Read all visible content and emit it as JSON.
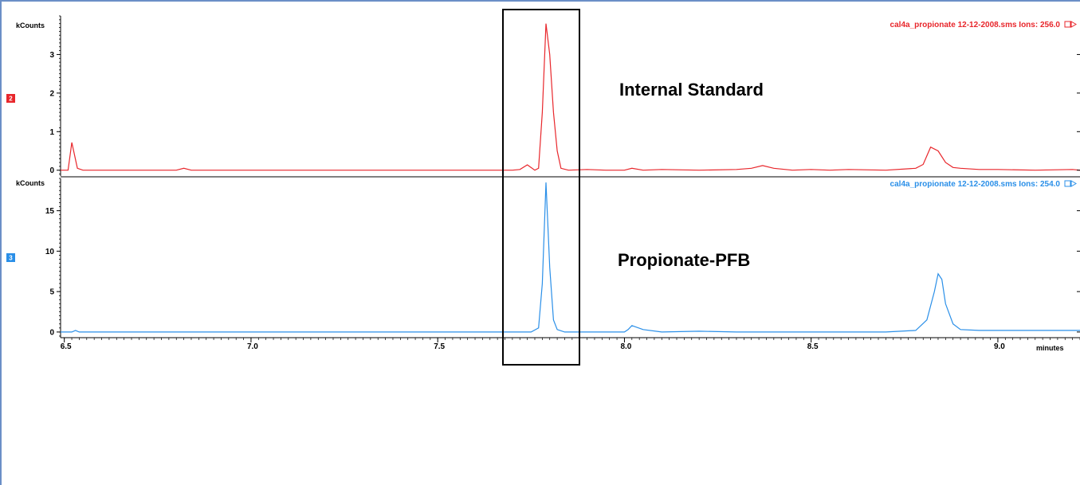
{
  "chart_data": [
    {
      "type": "line",
      "trace_id": "2",
      "file_label": "cal4a_propionate 12-12-2008.sms Ions: 256.0",
      "ylabel": "kCounts",
      "y_ticks": [
        "0",
        "1",
        "2",
        "3"
      ],
      "ylim": [
        -0.15,
        4.0
      ],
      "xlim": [
        6.49,
        9.22
      ],
      "color": "#e8262b",
      "annotation": "Internal Standard",
      "x": [
        6.49,
        6.51,
        6.52,
        6.535,
        6.55,
        6.6,
        6.7,
        6.8,
        6.82,
        6.84,
        6.9,
        7.0,
        7.1,
        7.2,
        7.3,
        7.4,
        7.5,
        7.6,
        7.65,
        7.7,
        7.72,
        7.74,
        7.76,
        7.77,
        7.78,
        7.79,
        7.8,
        7.81,
        7.82,
        7.83,
        7.85,
        7.9,
        7.95,
        8.0,
        8.02,
        8.05,
        8.1,
        8.2,
        8.3,
        8.34,
        8.37,
        8.4,
        8.45,
        8.5,
        8.55,
        8.6,
        8.7,
        8.78,
        8.8,
        8.82,
        8.84,
        8.86,
        8.88,
        8.9,
        8.95,
        9.0,
        9.1,
        9.2,
        9.22
      ],
      "y": [
        0.0,
        0.0,
        0.72,
        0.05,
        0.0,
        0.0,
        0.0,
        0.0,
        0.05,
        0.0,
        0.0,
        0.0,
        0.0,
        0.0,
        0.0,
        0.0,
        0.0,
        0.0,
        0.0,
        0.0,
        0.02,
        0.14,
        0.0,
        0.05,
        1.5,
        3.8,
        3.0,
        1.5,
        0.5,
        0.05,
        0.0,
        0.02,
        0.0,
        0.0,
        0.05,
        0.0,
        0.02,
        0.0,
        0.02,
        0.05,
        0.12,
        0.05,
        0.0,
        0.02,
        0.0,
        0.02,
        0.0,
        0.05,
        0.15,
        0.6,
        0.5,
        0.2,
        0.07,
        0.05,
        0.02,
        0.02,
        0.0,
        0.02,
        0.0
      ]
    },
    {
      "type": "line",
      "trace_id": "3",
      "file_label": "cal4a_propionate 12-12-2008.sms Ions: 254.0",
      "ylabel": "kCounts",
      "y_ticks": [
        "0",
        "5",
        "10",
        "15"
      ],
      "ylim": [
        -0.7,
        19.0
      ],
      "xlim": [
        6.49,
        9.22
      ],
      "color": "#2a8fe8",
      "annotation": "Propionate-PFB",
      "xlabel": "minutes",
      "x_ticks": [
        "6.5",
        "7.0",
        "7.5",
        "8.0",
        "8.5",
        "9.0"
      ],
      "x": [
        6.49,
        6.52,
        6.53,
        6.54,
        6.6,
        6.7,
        6.8,
        6.9,
        7.0,
        7.1,
        7.2,
        7.3,
        7.4,
        7.5,
        7.6,
        7.65,
        7.7,
        7.75,
        7.77,
        7.78,
        7.79,
        7.8,
        7.81,
        7.82,
        7.84,
        7.9,
        7.95,
        8.0,
        8.01,
        8.02,
        8.05,
        8.1,
        8.2,
        8.3,
        8.4,
        8.5,
        8.6,
        8.7,
        8.78,
        8.81,
        8.83,
        8.84,
        8.85,
        8.86,
        8.88,
        8.9,
        8.95,
        9.0,
        9.1,
        9.2,
        9.22
      ],
      "y": [
        0.0,
        0.0,
        0.2,
        0.0,
        0.0,
        0.0,
        0.0,
        0.0,
        0.0,
        0.0,
        0.0,
        0.0,
        0.0,
        0.0,
        0.0,
        0.0,
        0.0,
        0.0,
        0.5,
        6.0,
        18.5,
        8.0,
        1.5,
        0.3,
        0.0,
        0.0,
        0.0,
        0.0,
        0.3,
        0.8,
        0.3,
        0.0,
        0.1,
        0.0,
        0.0,
        0.0,
        0.0,
        0.0,
        0.2,
        1.5,
        5.0,
        7.2,
        6.5,
        3.5,
        1.0,
        0.3,
        0.2,
        0.2,
        0.2,
        0.2,
        0.2
      ]
    }
  ]
}
